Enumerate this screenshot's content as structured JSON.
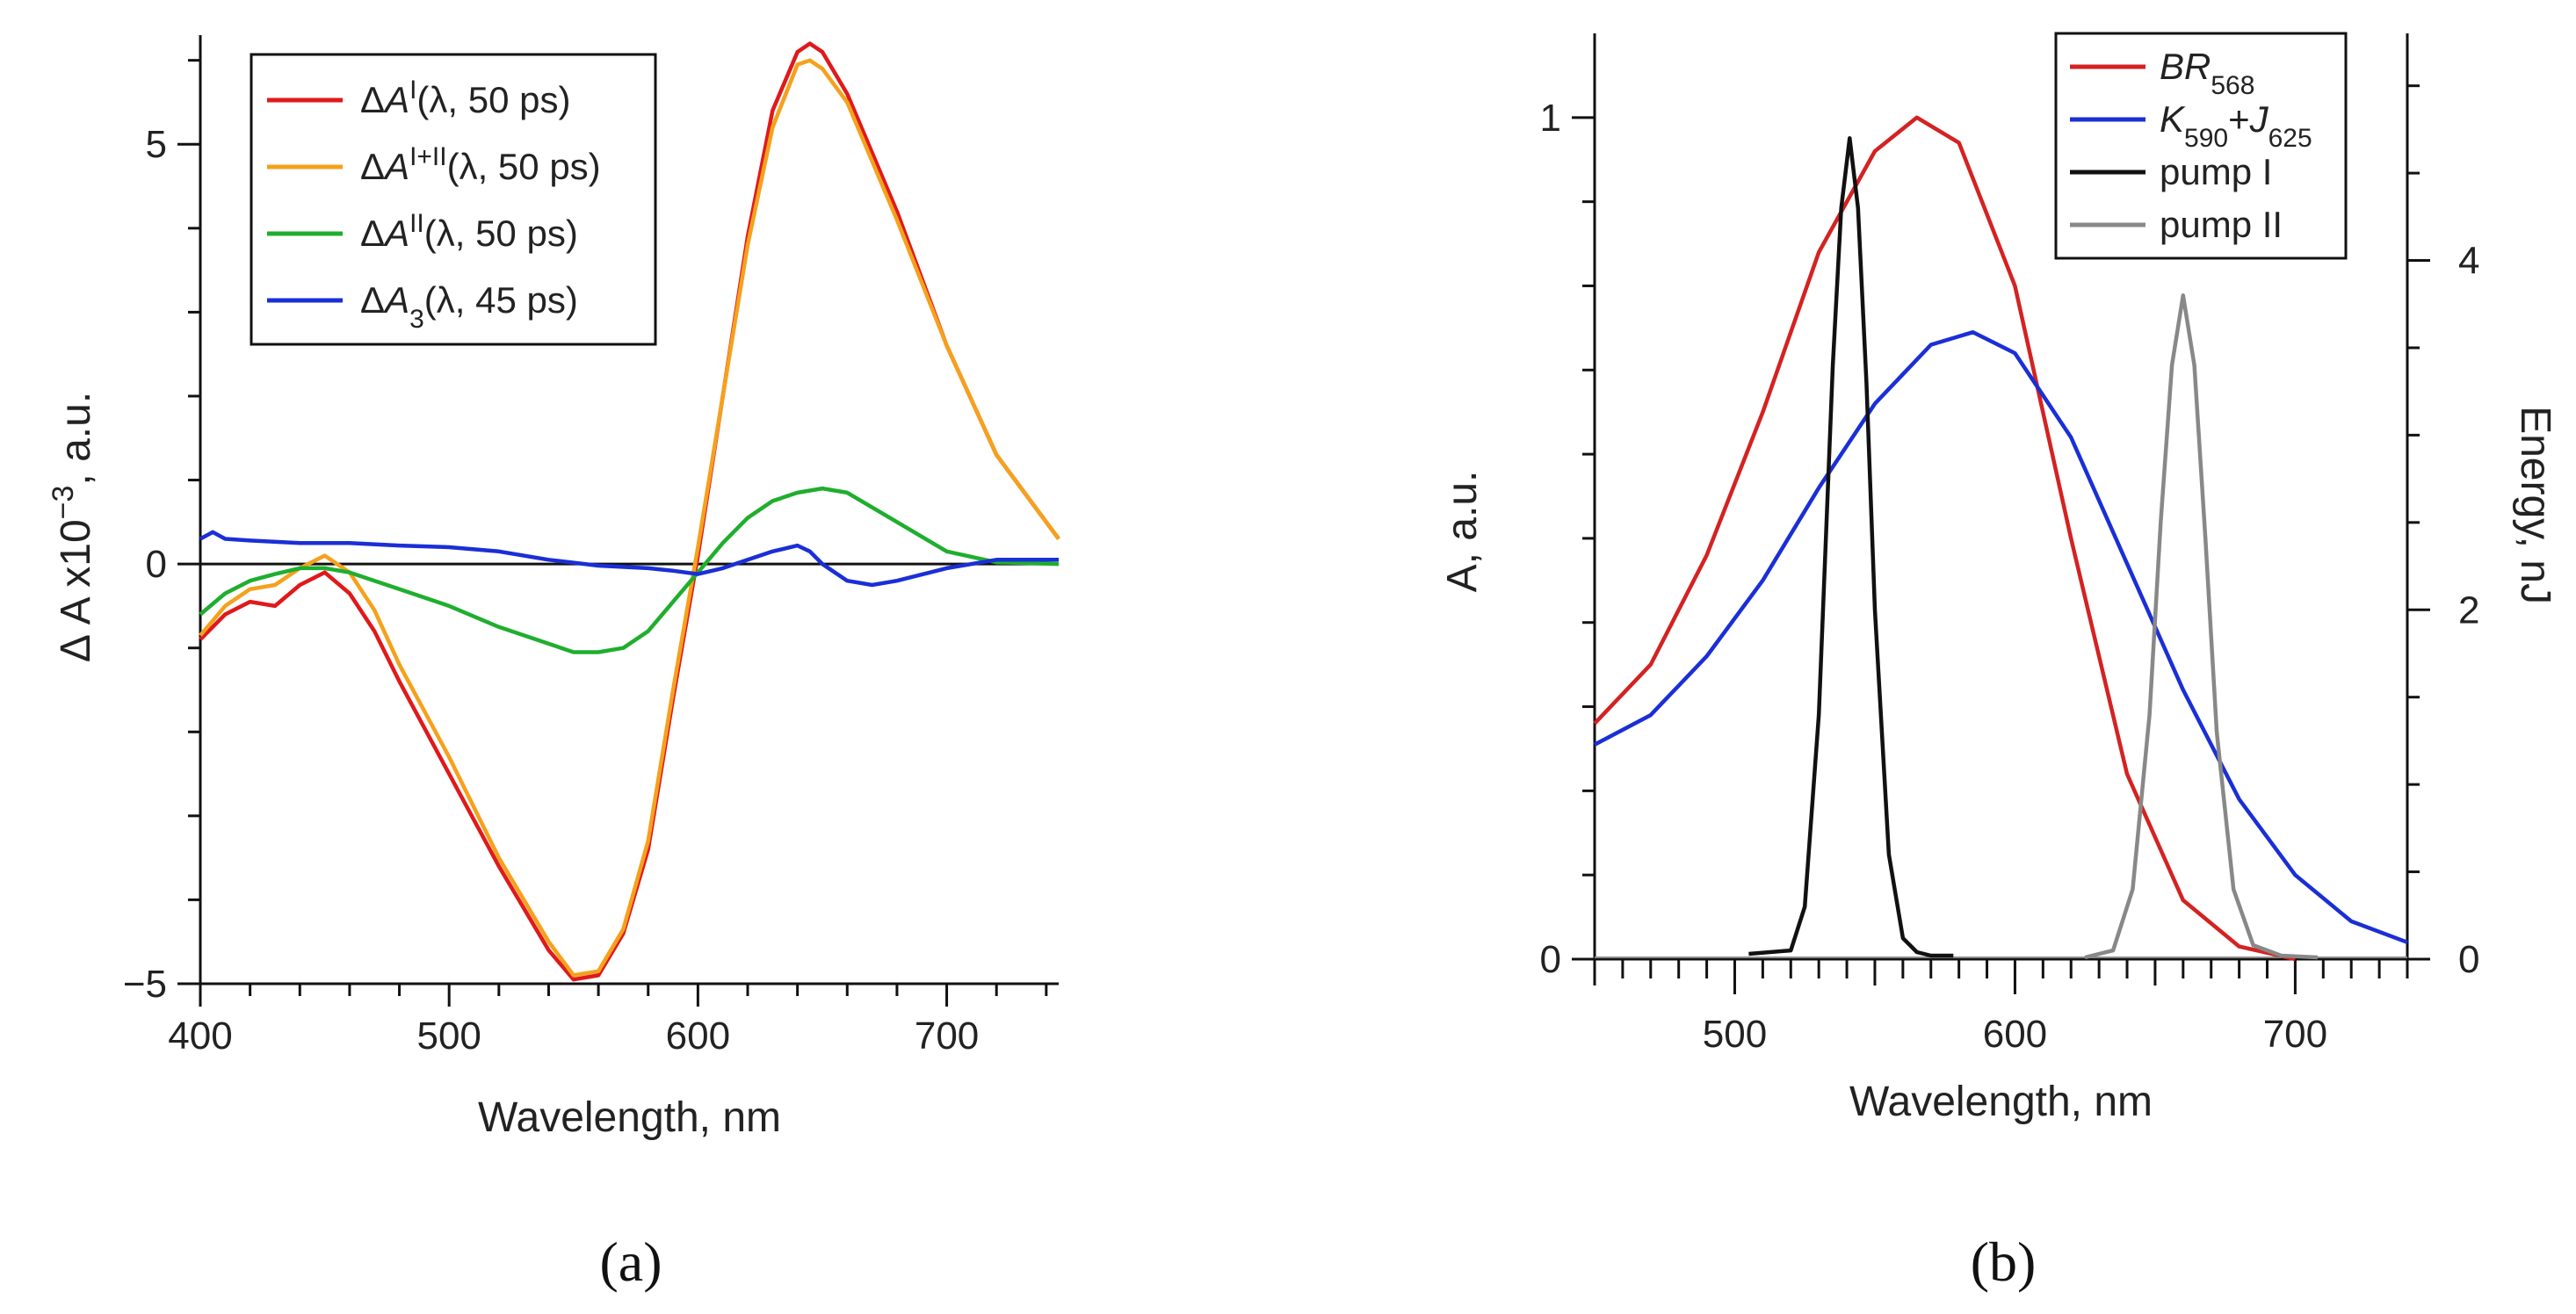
{
  "chart_data": [
    {
      "type": "line",
      "panel_label": "(a)",
      "xlabel": "Wavelength, nm",
      "ylabel": "Δ A x10",
      "ylabel_exp": "−3",
      "ylabel_suffix": ", a.u.",
      "xlim": [
        400,
        745
      ],
      "ylim": [
        -5,
        6.3
      ],
      "xticks": [
        400,
        500,
        600,
        700
      ],
      "xtick_labels": [
        "400",
        "500",
        "600",
        "700"
      ],
      "yticks": [
        -5,
        0,
        5
      ],
      "ytick_labels": [
        "−5",
        "0",
        "5"
      ],
      "legend_position": "top-left",
      "series": [
        {
          "name": "ΔA^I(λ, 50 ps)",
          "color": "#e0191b",
          "legend": {
            "prefix": "Δ",
            "var": "A",
            "sup": "I",
            "sub": "",
            "suffix": "(λ, 50 ps)"
          },
          "x": [
            400,
            410,
            420,
            430,
            440,
            450,
            460,
            470,
            480,
            500,
            520,
            540,
            550,
            560,
            570,
            580,
            590,
            600,
            610,
            620,
            630,
            640,
            645,
            650,
            660,
            680,
            700,
            720,
            745
          ],
          "y": [
            -0.9,
            -0.6,
            -0.45,
            -0.5,
            -0.25,
            -0.1,
            -0.35,
            -0.8,
            -1.4,
            -2.5,
            -3.6,
            -4.6,
            -4.95,
            -4.9,
            -4.4,
            -3.4,
            -1.6,
            0.1,
            2.0,
            3.9,
            5.4,
            6.1,
            6.2,
            6.1,
            5.6,
            4.2,
            2.6,
            1.3,
            0.3
          ]
        },
        {
          "name": "ΔA^I+II(λ, 50 ps)",
          "color": "#f5a11c",
          "legend": {
            "prefix": "Δ",
            "var": "A",
            "sup": "I+II",
            "sub": "",
            "suffix": "(λ, 50 ps)"
          },
          "x": [
            400,
            410,
            420,
            430,
            440,
            450,
            460,
            470,
            480,
            500,
            520,
            540,
            550,
            560,
            570,
            580,
            590,
            600,
            610,
            620,
            630,
            640,
            645,
            650,
            660,
            680,
            700,
            720,
            745
          ],
          "y": [
            -0.85,
            -0.5,
            -0.3,
            -0.25,
            -0.05,
            0.1,
            -0.1,
            -0.55,
            -1.2,
            -2.3,
            -3.5,
            -4.5,
            -4.9,
            -4.85,
            -4.35,
            -3.3,
            -1.5,
            0.2,
            2.0,
            3.8,
            5.2,
            5.95,
            6.0,
            5.9,
            5.5,
            4.1,
            2.6,
            1.3,
            0.3
          ]
        },
        {
          "name": "ΔA^II(λ, 50 ps)",
          "color": "#1fae2e",
          "legend": {
            "prefix": "Δ",
            "var": "A",
            "sup": "II",
            "sub": "",
            "suffix": "(λ, 50 ps)"
          },
          "x": [
            400,
            410,
            420,
            430,
            440,
            450,
            460,
            480,
            500,
            520,
            540,
            550,
            560,
            570,
            580,
            590,
            600,
            610,
            620,
            630,
            640,
            650,
            660,
            680,
            700,
            720,
            745
          ],
          "y": [
            -0.6,
            -0.35,
            -0.2,
            -0.12,
            -0.05,
            -0.05,
            -0.1,
            -0.3,
            -0.5,
            -0.75,
            -0.95,
            -1.05,
            -1.05,
            -1.0,
            -0.8,
            -0.45,
            -0.1,
            0.25,
            0.55,
            0.75,
            0.85,
            0.9,
            0.85,
            0.5,
            0.15,
            0.02,
            0.0
          ]
        },
        {
          "name": "ΔA_3(λ, 45 ps)",
          "color": "#1a2fd6",
          "legend": {
            "prefix": "Δ",
            "var": "A",
            "sup": "",
            "sub": "3",
            "suffix": "(λ, 45 ps)"
          },
          "x": [
            400,
            405,
            410,
            420,
            440,
            460,
            480,
            500,
            520,
            540,
            560,
            580,
            590,
            600,
            610,
            620,
            630,
            640,
            645,
            650,
            660,
            670,
            680,
            700,
            720,
            745
          ],
          "y": [
            0.3,
            0.38,
            0.3,
            0.28,
            0.25,
            0.25,
            0.22,
            0.2,
            0.15,
            0.05,
            -0.02,
            -0.05,
            -0.08,
            -0.12,
            -0.05,
            0.05,
            0.15,
            0.22,
            0.15,
            0.0,
            -0.2,
            -0.25,
            -0.2,
            -0.05,
            0.05,
            0.05
          ]
        }
      ]
    },
    {
      "type": "line",
      "panel_label": "(b)",
      "xlabel": "Wavelength, nm",
      "ylabel": "A, a.u.",
      "y2label": "Energy, nJ",
      "xlim": [
        450,
        740
      ],
      "ylim": [
        0,
        1.1
      ],
      "y2lim": [
        0,
        5.3
      ],
      "xticks": [
        500,
        600,
        700
      ],
      "xtick_labels": [
        "500",
        "600",
        "700"
      ],
      "yticks": [
        0,
        1
      ],
      "ytick_labels": [
        "0",
        "1"
      ],
      "y2ticks": [
        0,
        2,
        4
      ],
      "y2tick_labels": [
        "0",
        "2",
        "4"
      ],
      "legend_position": "top-right",
      "series": [
        {
          "name": "BR_568",
          "color": "#d42222",
          "axis": "left",
          "legend": {
            "prefix": "",
            "var": "BR",
            "sup": "",
            "sub": "568",
            "suffix": ""
          },
          "x": [
            450,
            470,
            490,
            510,
            530,
            550,
            565,
            580,
            600,
            620,
            640,
            660,
            680,
            700
          ],
          "y": [
            0.28,
            0.35,
            0.48,
            0.65,
            0.84,
            0.96,
            1.0,
            0.97,
            0.8,
            0.5,
            0.22,
            0.07,
            0.015,
            0.0
          ]
        },
        {
          "name": "K_590+J_625",
          "color": "#1a2fd6",
          "axis": "left",
          "legend": {
            "prefix": "",
            "var": "K",
            "sup": "",
            "sub": "590",
            "suffix": "",
            "var2": "J",
            "sub2": "625"
          },
          "x": [
            450,
            470,
            490,
            510,
            530,
            550,
            570,
            585,
            600,
            620,
            640,
            660,
            680,
            700,
            720,
            740
          ],
          "y": [
            0.255,
            0.29,
            0.36,
            0.45,
            0.56,
            0.66,
            0.73,
            0.745,
            0.72,
            0.62,
            0.47,
            0.32,
            0.19,
            0.1,
            0.045,
            0.02
          ]
        },
        {
          "name": "pump I",
          "color": "#111111",
          "axis": "right",
          "legend": {
            "prefix": "",
            "var": "",
            "sup": "",
            "sub": "",
            "suffix": "pump I",
            "plain": true
          },
          "x": [
            505,
            520,
            525,
            530,
            535,
            538,
            541,
            544,
            547,
            550,
            555,
            560,
            565,
            570,
            578
          ],
          "y": [
            0.03,
            0.05,
            0.3,
            1.4,
            3.4,
            4.3,
            4.7,
            4.3,
            3.3,
            2.0,
            0.6,
            0.12,
            0.04,
            0.02,
            0.02
          ]
        },
        {
          "name": "pump II",
          "color": "#888888",
          "axis": "right",
          "legend": {
            "prefix": "",
            "var": "",
            "sup": "",
            "sub": "",
            "suffix": "pump II",
            "plain": true
          },
          "x": [
            625,
            635,
            642,
            648,
            652,
            656,
            660,
            664,
            668,
            672,
            678,
            685,
            695,
            708
          ],
          "y": [
            0.01,
            0.05,
            0.4,
            1.4,
            2.5,
            3.4,
            3.8,
            3.4,
            2.4,
            1.3,
            0.4,
            0.08,
            0.02,
            0.01
          ]
        }
      ]
    }
  ]
}
